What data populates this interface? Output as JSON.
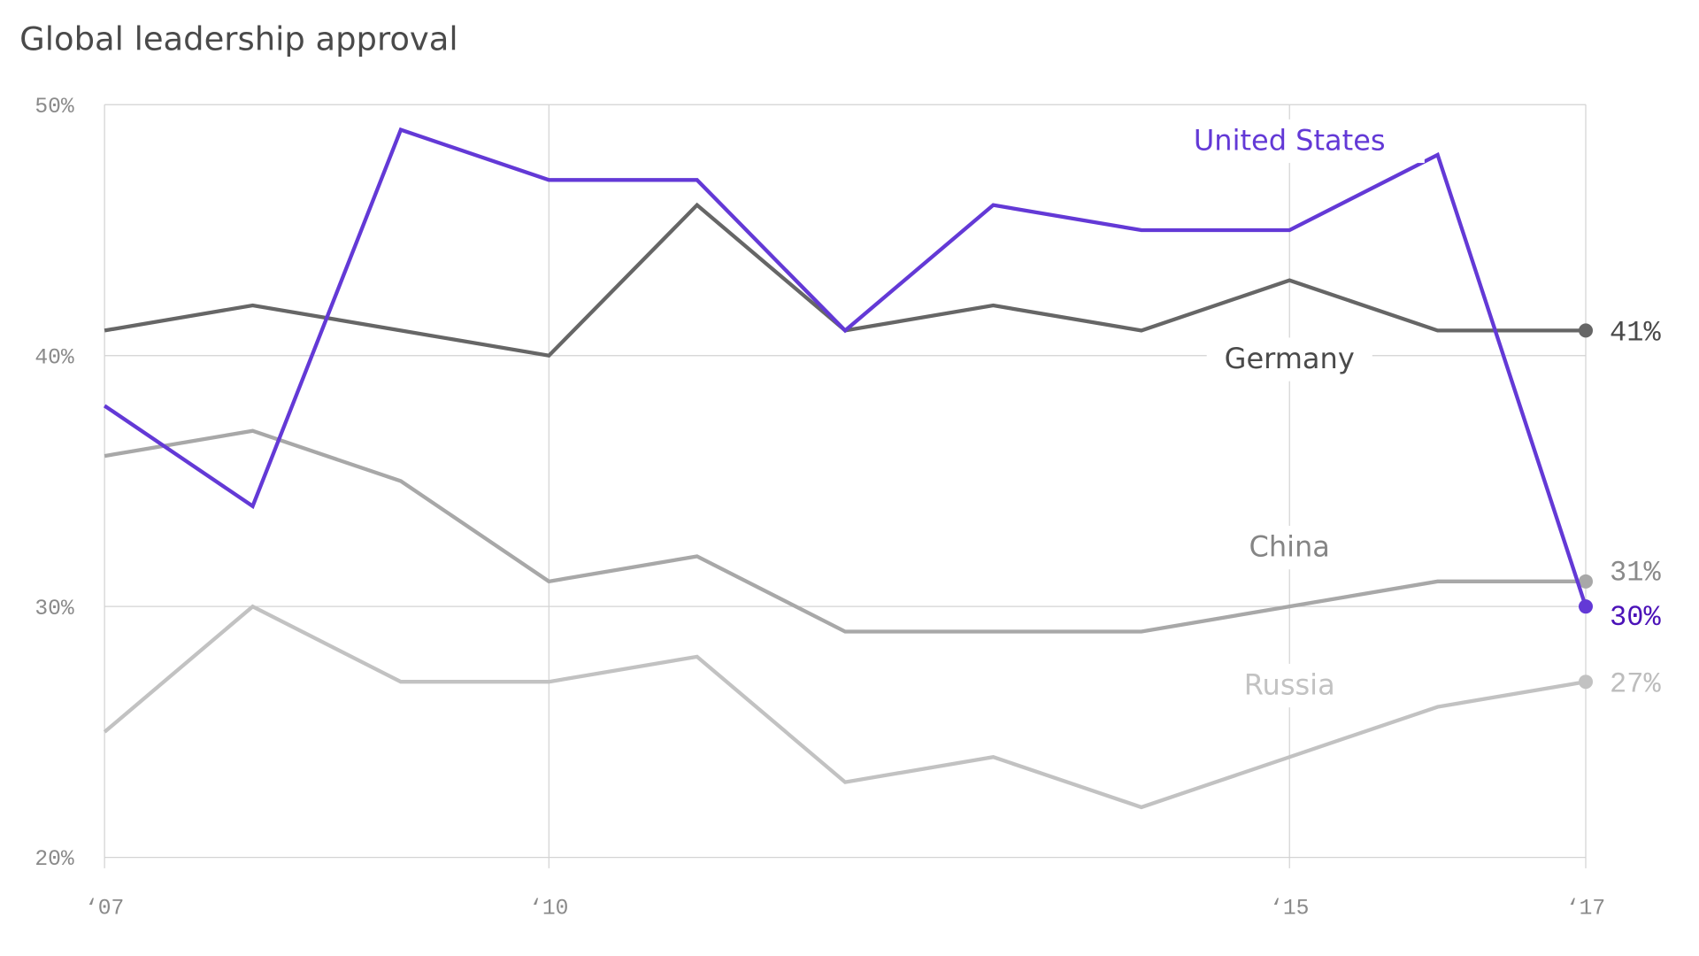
{
  "chart_data": {
    "type": "line",
    "title": "Global leadership approval",
    "x": [
      2007,
      2008,
      2009,
      2010,
      2011,
      2012,
      2013,
      2014,
      2015,
      2016,
      2017
    ],
    "xticks": [
      {
        "value": 2007,
        "label": "‘07"
      },
      {
        "value": 2010,
        "label": "‘10"
      },
      {
        "value": 2015,
        "label": "‘15"
      },
      {
        "value": 2017,
        "label": "‘17"
      }
    ],
    "yticks": [
      {
        "value": 50,
        "label": "50%"
      },
      {
        "value": 40,
        "label": "40%"
      },
      {
        "value": 30,
        "label": "30%"
      },
      {
        "value": 20,
        "label": "20%"
      }
    ],
    "ylim": [
      20,
      50
    ],
    "grid": true,
    "series": [
      {
        "name": "Russia",
        "color": "#c2c2c2",
        "values": [
          25,
          30,
          27,
          27,
          28,
          23,
          24,
          22,
          24,
          26,
          27
        ],
        "end_label": "27%",
        "end_color": "#bdbdbd",
        "name_color": "#c2c2c2",
        "name_y": 26.5
      },
      {
        "name": "China",
        "color": "#a8a8a8",
        "values": [
          36,
          37,
          35,
          31,
          32,
          29,
          29,
          29,
          30,
          31,
          31
        ],
        "end_label": "31%",
        "end_color": "#8a8a8a",
        "name_color": "#858585",
        "name_y": 32
      },
      {
        "name": "Germany",
        "color": "#666666",
        "values": [
          41,
          42,
          41,
          40,
          46,
          41,
          42,
          41,
          43,
          41,
          41
        ],
        "end_label": "41%",
        "end_color": "#4a4a4a",
        "name_color": "#4a4a4a",
        "name_y": 39.5
      },
      {
        "name": "United States",
        "color": "#6339d6",
        "values": [
          38,
          34,
          49,
          47,
          47,
          41,
          46,
          45,
          45,
          48,
          30
        ],
        "end_label": "30%",
        "end_color": "#4b12b8",
        "name_color": "#6339d6",
        "name_y": 48.2
      }
    ]
  }
}
